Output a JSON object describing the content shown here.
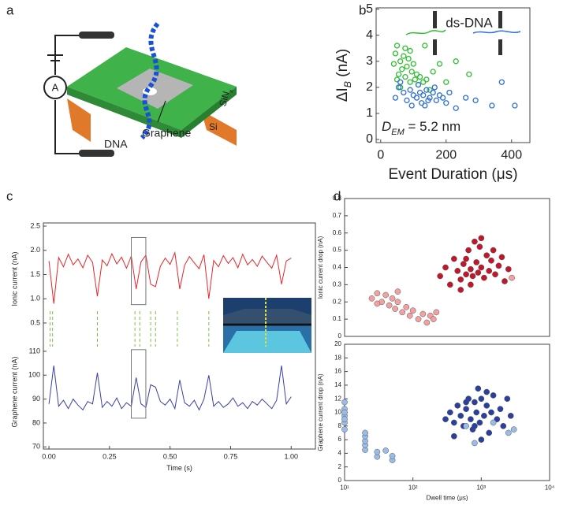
{
  "panel_labels": [
    "a",
    "b",
    "c",
    "d"
  ],
  "diagram": {
    "meter": "A",
    "dna": "DNA",
    "graphene": "Graphene",
    "si": "Si",
    "sin": {
      "main": "SiN",
      "sub": "x"
    }
  },
  "annotations": {
    "ds_dna": "ds-DNA",
    "dem": {
      "main": "D",
      "sub": "EM",
      "rest": " = 5.2 nm"
    }
  },
  "chart_data": [
    {
      "type": "scatter",
      "marker": "open",
      "xlabel": "Event Duration (μs)",
      "ylabel": {
        "main": "ΔI",
        "sub": "B",
        "unit": " (nA)"
      },
      "xlim": [
        -14,
        456
      ],
      "ylim": [
        -0.12,
        5.05
      ],
      "xticks": [
        0,
        200,
        400
      ],
      "yticks": [
        0,
        1,
        2,
        3,
        4,
        5
      ],
      "series": [
        {
          "color": "#2fbf2f",
          "x": [
            40,
            45,
            50,
            55,
            60,
            65,
            70,
            75,
            80,
            85,
            90,
            95,
            100,
            105,
            110,
            115,
            120,
            130,
            140,
            160,
            180,
            200,
            230,
            270,
            135,
            60,
            75,
            50,
            90,
            150
          ],
          "values": [
            2.9,
            3.3,
            3.6,
            2.5,
            3.0,
            2.7,
            3.2,
            2.4,
            2.8,
            3.1,
            2.2,
            2.6,
            2.9,
            2.3,
            2.5,
            2.1,
            2.4,
            2.2,
            2.3,
            2.6,
            2.9,
            2.2,
            3.0,
            2.5,
            3.6,
            2.0,
            3.5,
            2.3,
            3.4,
            1.9
          ]
        },
        {
          "color": "#2f6fd6",
          "x": [
            45,
            55,
            60,
            70,
            80,
            90,
            100,
            110,
            120,
            125,
            130,
            140,
            145,
            150,
            160,
            170,
            180,
            190,
            200,
            210,
            115,
            135,
            165,
            95,
            260,
            290,
            340,
            370,
            410,
            230
          ],
          "values": [
            1.6,
            2.0,
            2.2,
            1.8,
            1.5,
            1.9,
            1.7,
            1.6,
            1.8,
            1.4,
            1.7,
            1.9,
            1.5,
            1.6,
            1.8,
            1.5,
            1.7,
            1.6,
            1.4,
            1.8,
            2.1,
            1.3,
            2.0,
            1.3,
            1.6,
            1.5,
            1.3,
            2.2,
            1.3,
            1.2
          ]
        }
      ]
    },
    {
      "type": "line",
      "color": "#e8262a",
      "ylabel": "Ionic current (nA)",
      "xlim": [
        -0.023,
        1.1
      ],
      "ylim": [
        0.256,
        2.565
      ],
      "yticks": [
        0.5,
        {
          "value": 1,
          "label": "1.0"
        },
        1.5,
        {
          "value": 2,
          "label": "2.0"
        },
        2.5
      ],
      "x": [
        0,
        0.02,
        0.04,
        0.06,
        0.08,
        0.1,
        0.12,
        0.14,
        0.16,
        0.18,
        0.2,
        0.22,
        0.24,
        0.26,
        0.28,
        0.3,
        0.32,
        0.34,
        0.36,
        0.38,
        0.4,
        0.42,
        0.44,
        0.46,
        0.48,
        0.5,
        0.52,
        0.54,
        0.56,
        0.58,
        0.6,
        0.62,
        0.64,
        0.66,
        0.68,
        0.7,
        0.72,
        0.74,
        0.76,
        0.78,
        0.8,
        0.82,
        0.84,
        0.86,
        0.88,
        0.9,
        0.92,
        0.94,
        0.96,
        0.98,
        1.0
      ],
      "values": [
        1.78,
        0.9,
        1.85,
        1.66,
        1.92,
        1.7,
        1.82,
        1.64,
        1.9,
        1.75,
        1.05,
        1.8,
        1.68,
        1.93,
        1.72,
        1.86,
        1.63,
        1.88,
        1.2,
        1.76,
        1.9,
        1.3,
        1.25,
        1.67,
        1.84,
        1.71,
        1.95,
        1.2,
        1.69,
        1.87,
        1.74,
        1.62,
        1.91,
        1.0,
        1.79,
        1.66,
        1.89,
        1.73,
        1.85,
        1.64,
        1.92,
        1.7,
        1.81,
        1.67,
        1.88,
        1.75,
        1.63,
        1.9,
        1.3,
        1.78,
        1.84
      ],
      "event_x": [
        0.005,
        0.015,
        0.2,
        0.355,
        0.375,
        0.42,
        0.44,
        0.53,
        0.66
      ],
      "event_color": "#7cc04a",
      "highlight_x": [
        0.34,
        0.4
      ]
    },
    {
      "type": "line",
      "color": "#3b3fa8",
      "ylabel": "Graphene current (nA)",
      "xlabel": "Time (s)",
      "xlim": [
        -0.023,
        1.1
      ],
      "ylim": [
        69.1,
        116.9
      ],
      "yticks": [
        70,
        80,
        90,
        100,
        110
      ],
      "xticks": [
        {
          "value": 0,
          "label": "0.00"
        },
        {
          "value": 0.25,
          "label": "0.25"
        },
        {
          "value": 0.5,
          "label": "0.50"
        },
        {
          "value": 0.75,
          "label": "0.75"
        },
        {
          "value": 1,
          "label": "1.00"
        }
      ],
      "x": [
        0,
        0.02,
        0.04,
        0.06,
        0.08,
        0.1,
        0.12,
        0.14,
        0.16,
        0.18,
        0.2,
        0.22,
        0.24,
        0.26,
        0.28,
        0.3,
        0.32,
        0.34,
        0.36,
        0.38,
        0.4,
        0.42,
        0.44,
        0.46,
        0.48,
        0.5,
        0.52,
        0.54,
        0.56,
        0.58,
        0.6,
        0.62,
        0.64,
        0.66,
        0.68,
        0.7,
        0.72,
        0.74,
        0.76,
        0.78,
        0.8,
        0.82,
        0.84,
        0.86,
        0.88,
        0.9,
        0.92,
        0.94,
        0.96,
        0.98,
        1.0
      ],
      "values": [
        88,
        104,
        87,
        89.5,
        86,
        90,
        87.5,
        85.5,
        89,
        88,
        101,
        86.5,
        89,
        87,
        90.5,
        86,
        88.5,
        87,
        99,
        88,
        86.5,
        96,
        95,
        89,
        87.5,
        90,
        86,
        98,
        88.5,
        87,
        89.5,
        85.5,
        90,
        100,
        87,
        89,
        86.5,
        88,
        90.5,
        87,
        88.5,
        86,
        89,
        87.5,
        90,
        88,
        86,
        89.5,
        104,
        88,
        91
      ],
      "highlight_x": [
        0.34,
        0.4
      ]
    },
    {
      "type": "scatter",
      "marker": "filled",
      "xlog": true,
      "ylabel": "Ionic current drop (nA)",
      "xlim": [
        10,
        10000
      ],
      "ylim": [
        0,
        0.8
      ],
      "yticks": [
        0,
        0.1,
        0.2,
        0.3,
        0.4,
        0.5,
        0.6,
        0.7,
        0.8
      ],
      "series": [
        {
          "color": "#c0172a",
          "x": [
            250,
            300,
            350,
            400,
            450,
            500,
            550,
            600,
            650,
            700,
            750,
            800,
            850,
            900,
            950,
            1000,
            1100,
            1200,
            1300,
            1400,
            1600,
            1800,
            2000,
            2200,
            2500,
            700,
            1000,
            500,
            1500,
            600
          ],
          "values": [
            0.35,
            0.4,
            0.3,
            0.45,
            0.38,
            0.33,
            0.42,
            0.36,
            0.5,
            0.39,
            0.35,
            0.55,
            0.43,
            0.37,
            0.52,
            0.4,
            0.34,
            0.47,
            0.38,
            0.44,
            0.36,
            0.41,
            0.46,
            0.32,
            0.39,
            0.3,
            0.57,
            0.27,
            0.5,
            0.45
          ]
        },
        {
          "color": "#f2a0a0",
          "x": [
            25,
            30,
            35,
            40,
            45,
            50,
            55,
            60,
            70,
            80,
            90,
            100,
            120,
            140,
            160,
            180,
            200,
            220,
            30,
            60,
            2800
          ],
          "values": [
            0.22,
            0.25,
            0.2,
            0.24,
            0.18,
            0.22,
            0.16,
            0.2,
            0.14,
            0.17,
            0.12,
            0.15,
            0.1,
            0.13,
            0.08,
            0.12,
            0.1,
            0.14,
            0.19,
            0.26,
            0.34
          ]
        }
      ]
    },
    {
      "type": "scatter",
      "marker": "filled",
      "xlog": true,
      "ylabel": "Graphene current drop (nA)",
      "xlabel": "Dwell time (μs)",
      "xlim": [
        10,
        10000
      ],
      "ylim": [
        0,
        20
      ],
      "yticks": [
        0,
        2,
        4,
        6,
        8,
        10,
        12,
        14,
        16,
        18,
        20
      ],
      "xticks": [
        {
          "value": 10,
          "label": "10¹"
        },
        {
          "value": 100,
          "label": "10²"
        },
        {
          "value": 1000,
          "label": "10³"
        },
        {
          "value": 10000,
          "label": "10⁴"
        }
      ],
      "series": [
        {
          "color": "#2a3f9e",
          "x": [
            300,
            350,
            400,
            450,
            500,
            550,
            600,
            650,
            700,
            750,
            800,
            850,
            900,
            950,
            1000,
            1100,
            1200,
            1300,
            1400,
            1500,
            1700,
            1900,
            2100,
            2400,
            2700,
            400,
            600,
            1000,
            800,
            1200
          ],
          "values": [
            9,
            10,
            8.5,
            11,
            9.5,
            8,
            10.5,
            12,
            9,
            7.5,
            11.5,
            10,
            13.5,
            8.5,
            12,
            9.5,
            11,
            7,
            10,
            12.5,
            9,
            10.5,
            8,
            12,
            9.5,
            6.5,
            11.5,
            6,
            8,
            13
          ]
        },
        {
          "color": "#9bbbe8",
          "x": [
            10,
            10,
            10,
            10,
            10,
            10,
            10,
            20,
            20,
            20,
            20,
            20,
            30,
            30,
            40,
            50,
            50,
            600,
            800,
            1500,
            2500,
            3000
          ],
          "values": [
            7.5,
            8.5,
            9.5,
            10.5,
            11.5,
            9,
            10,
            4.5,
            5.2,
            5.8,
            6.5,
            7,
            3.5,
            4.2,
            4.4,
            3,
            3.6,
            8,
            5.5,
            8.5,
            7,
            7.5
          ]
        }
      ]
    }
  ]
}
